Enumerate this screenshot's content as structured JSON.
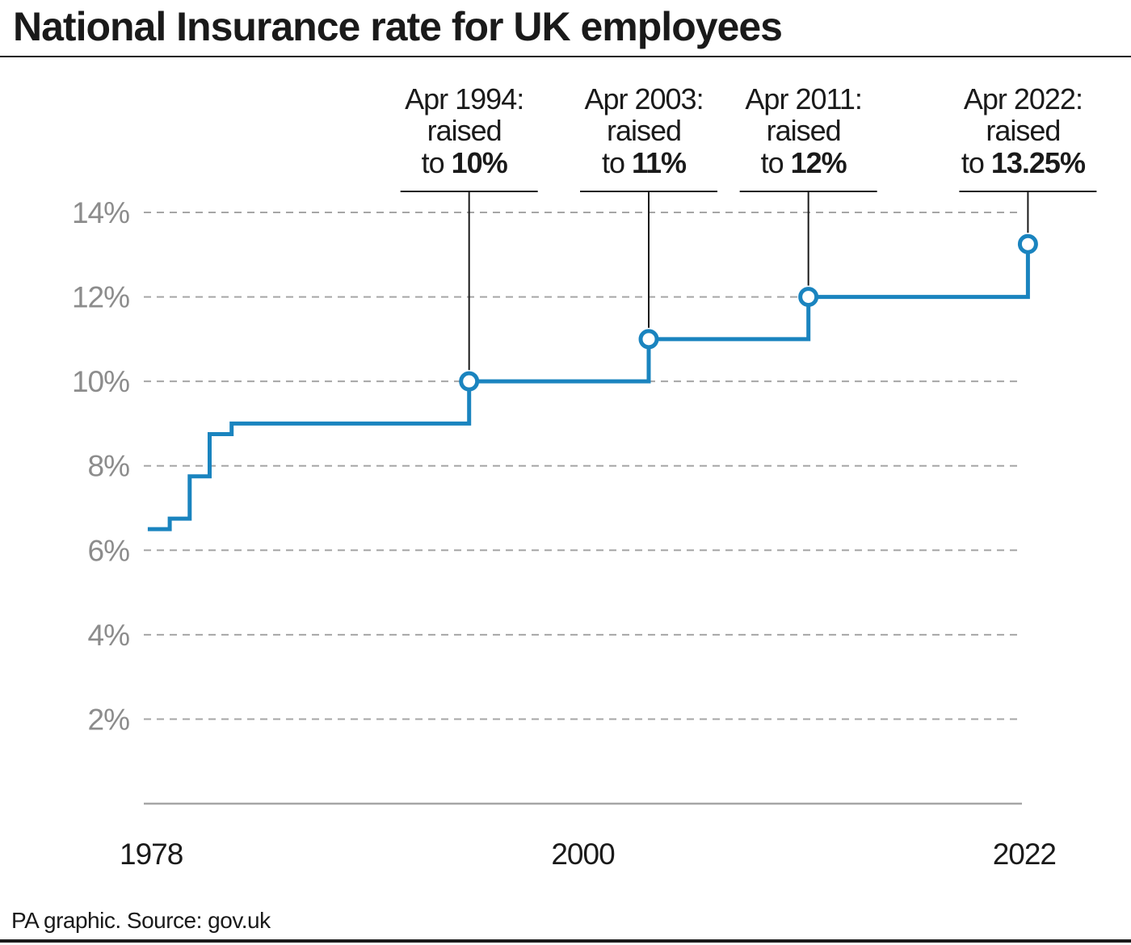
{
  "title": "National Insurance rate for UK employees",
  "source": "PA graphic. Source: gov.uk",
  "colors": {
    "line": "#1a84bf",
    "grid": "#a6a6a6",
    "axis_text": "#8c8c8c",
    "text": "#1a1a1a"
  },
  "chart_data": {
    "type": "line",
    "step": true,
    "ylim": [
      0,
      14
    ],
    "xlim": [
      1978,
      2022
    ],
    "yticks": [
      2,
      4,
      6,
      8,
      10,
      12,
      14
    ],
    "ytick_labels": [
      "2%",
      "4%",
      "6%",
      "8%",
      "10%",
      "12%",
      "14%"
    ],
    "xticks": [
      1978,
      2000,
      2022
    ],
    "xtick_labels": [
      "1978",
      "2000",
      "2022"
    ],
    "grid": true,
    "series": [
      {
        "x": [
          1978.2,
          1979.3,
          1979.3,
          1980.3,
          1980.3,
          1981.3,
          1981.3,
          1982.4,
          1982.4,
          1983.4,
          1983.4,
          1994.3,
          1994.3,
          2003.3,
          2003.3,
          2011.3,
          2011.3,
          2022.3,
          2022.3
        ],
        "y": [
          6.5,
          6.5,
          6.75,
          6.75,
          7.75,
          7.75,
          8.75,
          8.75,
          9.0,
          9.0,
          9.0,
          9.0,
          10.0,
          10.0,
          11.0,
          11.0,
          12.0,
          12.0,
          13.25
        ]
      }
    ],
    "annotations": [
      {
        "x": 1994.3,
        "y": 10,
        "line1": "Apr 1994:",
        "line2": "raised",
        "prefix": "to ",
        "value": "10%"
      },
      {
        "x": 2003.3,
        "y": 11,
        "line1": "Apr 2003:",
        "line2": "raised",
        "prefix": "to ",
        "value": "11%"
      },
      {
        "x": 2011.3,
        "y": 12,
        "line1": "Apr 2011:",
        "line2": "raised",
        "prefix": "to ",
        "value": "12%"
      },
      {
        "x": 2022.3,
        "y": 13.25,
        "line1": "Apr 2022:",
        "line2": "raised",
        "prefix": "to ",
        "value": "13.25%"
      }
    ]
  }
}
